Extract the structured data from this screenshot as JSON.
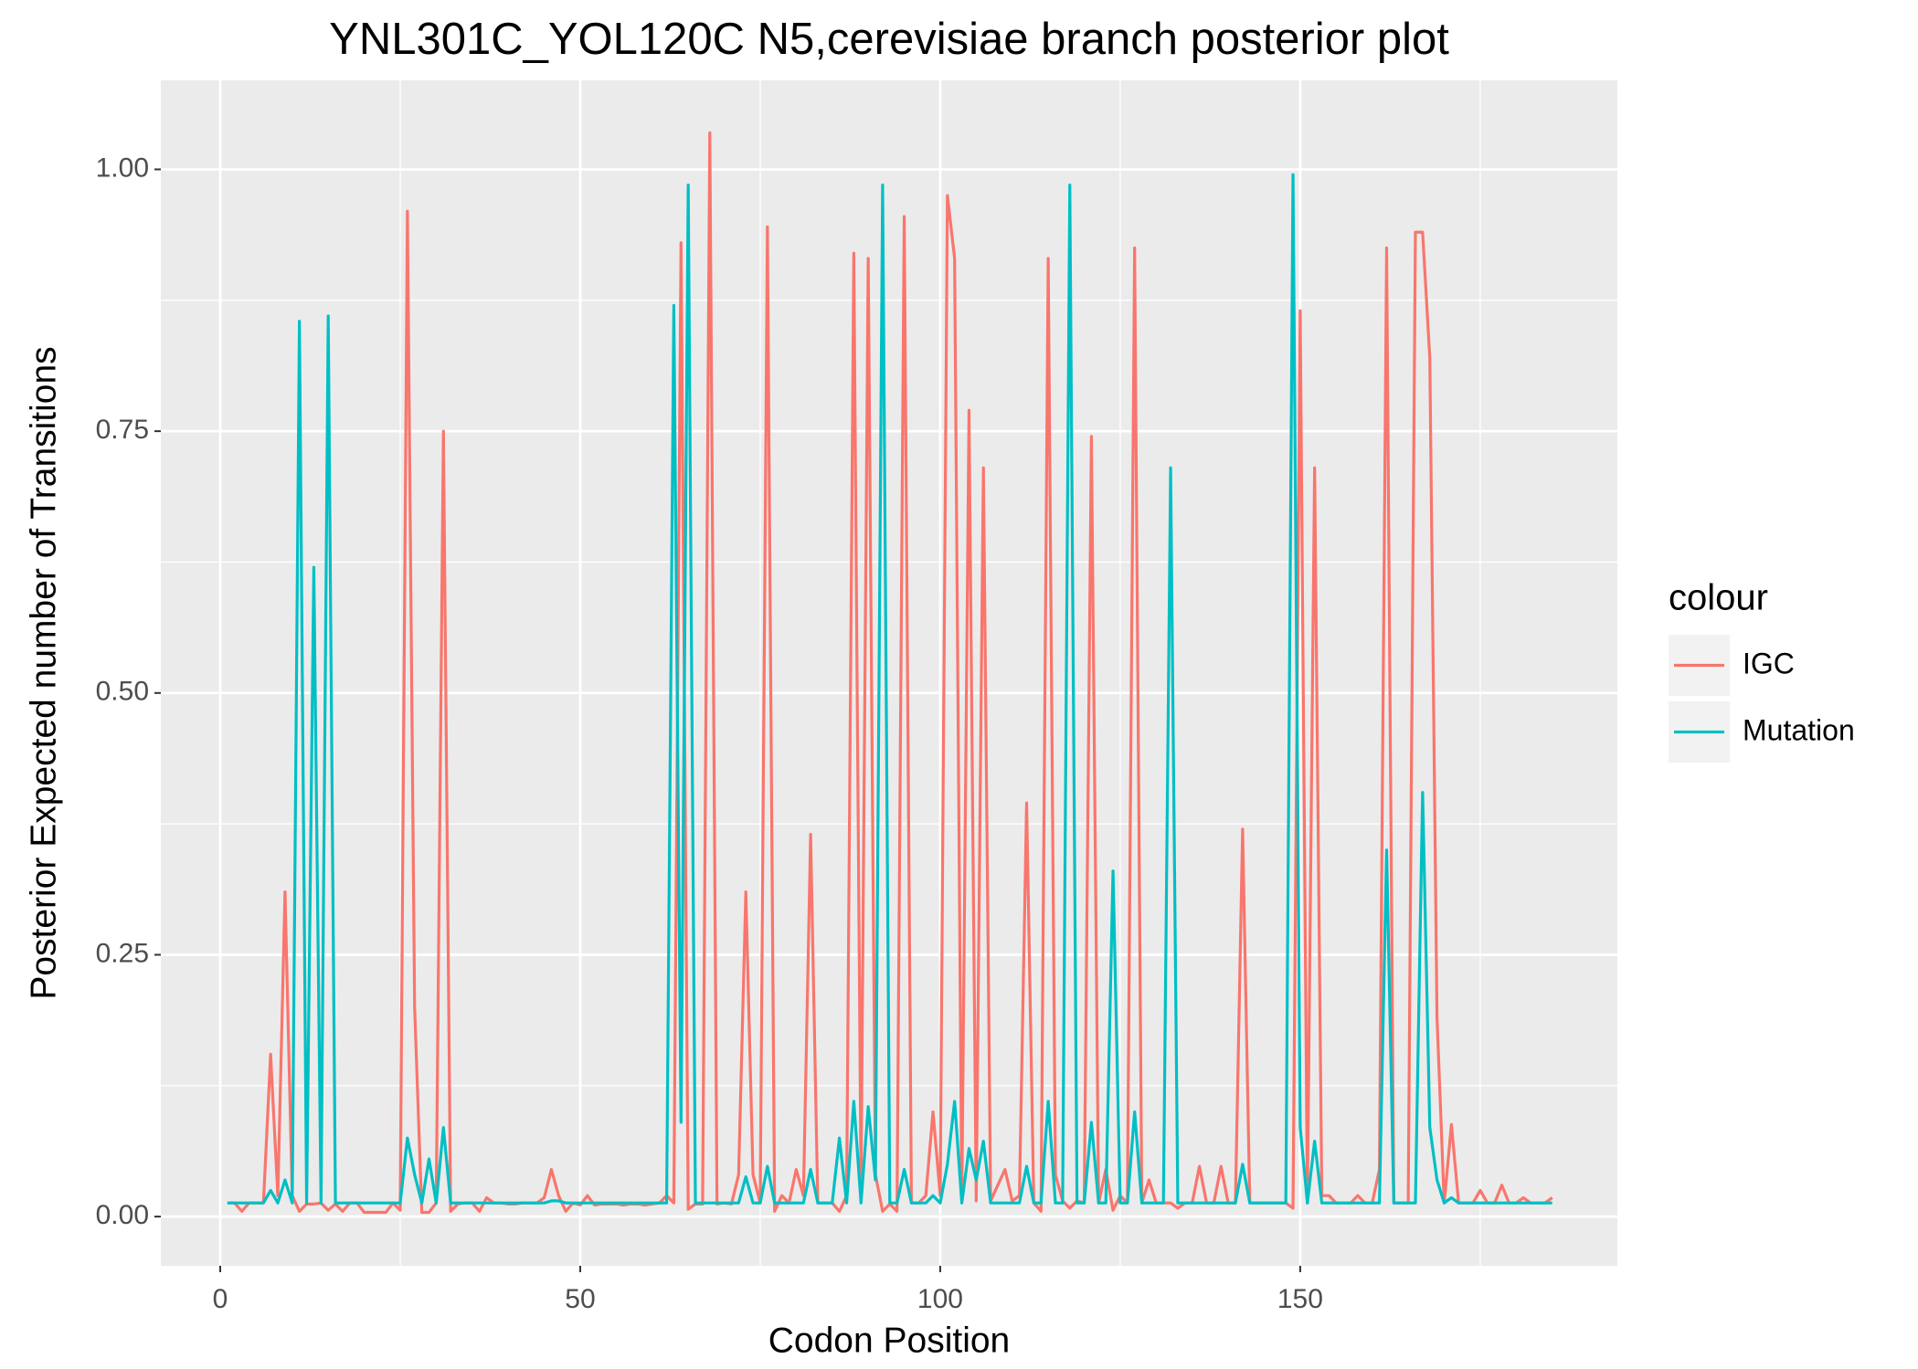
{
  "chart_data": {
    "type": "line",
    "title": "YNL301C_YOL120C N5,cerevisiae branch posterior plot",
    "x_label": "Codon Position",
    "y_label": "Posterior Expected number of Transitions",
    "xlim": [
      -8.25,
      194.05
    ],
    "ylim": [
      -0.047,
      1.085
    ],
    "xticks": [
      0,
      50,
      100,
      150
    ],
    "yticks": [
      {
        "value": 0,
        "label": "0.00"
      },
      {
        "value": 0.25,
        "label": "0.25"
      },
      {
        "value": 0.5,
        "label": "0.50"
      },
      {
        "value": 0.75,
        "label": "0.75"
      },
      {
        "value": 1,
        "label": "1.00"
      }
    ],
    "grid": true,
    "legend_title": "colour",
    "legend_position": "right",
    "x": [
      1,
      2,
      3,
      4,
      5,
      6,
      7,
      8,
      9,
      10,
      11,
      12,
      13,
      14,
      15,
      16,
      17,
      18,
      19,
      20,
      21,
      22,
      23,
      24,
      25,
      26,
      27,
      28,
      29,
      30,
      31,
      32,
      33,
      34,
      35,
      36,
      37,
      38,
      39,
      40,
      41,
      42,
      43,
      44,
      45,
      46,
      47,
      48,
      49,
      50,
      51,
      52,
      53,
      54,
      55,
      56,
      57,
      58,
      59,
      60,
      61,
      62,
      63,
      64,
      65,
      66,
      67,
      68,
      69,
      70,
      71,
      72,
      73,
      74,
      75,
      76,
      77,
      78,
      79,
      80,
      81,
      82,
      83,
      84,
      85,
      86,
      87,
      88,
      89,
      90,
      91,
      92,
      93,
      94,
      95,
      96,
      97,
      98,
      99,
      100,
      101,
      102,
      103,
      104,
      105,
      106,
      107,
      108,
      109,
      110,
      111,
      112,
      113,
      114,
      115,
      116,
      117,
      118,
      119,
      120,
      121,
      122,
      123,
      124,
      125,
      126,
      127,
      128,
      129,
      130,
      131,
      132,
      133,
      134,
      135,
      136,
      137,
      138,
      139,
      140,
      141,
      142,
      143,
      144,
      145,
      146,
      147,
      148,
      149,
      150,
      151,
      152,
      153,
      154,
      155,
      156,
      157,
      158,
      159,
      160,
      161,
      162,
      163,
      164,
      165,
      166,
      167,
      168,
      169,
      170,
      171,
      172,
      173,
      174,
      175,
      176,
      177,
      178,
      179,
      180,
      181,
      182,
      183,
      184,
      185
    ],
    "series": [
      {
        "name": "IGC",
        "color": "#F8766D",
        "values": [
          0.013,
          0.013,
          0.005,
          0.013,
          0.013,
          0.013,
          0.155,
          0.02,
          0.31,
          0.02,
          0.005,
          0.012,
          0.012,
          0.013,
          0.006,
          0.012,
          0.005,
          0.013,
          0.013,
          0.004,
          0.004,
          0.004,
          0.004,
          0.013,
          0.006,
          0.96,
          0.2,
          0.004,
          0.004,
          0.013,
          0.75,
          0.005,
          0.012,
          0.013,
          0.013,
          0.005,
          0.018,
          0.013,
          0.013,
          0.012,
          0.012,
          0.013,
          0.013,
          0.013,
          0.018,
          0.045,
          0.02,
          0.005,
          0.013,
          0.011,
          0.02,
          0.011,
          0.012,
          0.012,
          0.012,
          0.011,
          0.012,
          0.012,
          0.011,
          0.012,
          0.013,
          0.02,
          0.013,
          0.93,
          0.007,
          0.012,
          0.012,
          1.035,
          0.012,
          0.013,
          0.012,
          0.04,
          0.31,
          0.04,
          0.013,
          0.945,
          0.005,
          0.02,
          0.013,
          0.045,
          0.02,
          0.365,
          0.013,
          0.013,
          0.013,
          0.005,
          0.02,
          0.92,
          0.03,
          0.915,
          0.04,
          0.005,
          0.012,
          0.005,
          0.955,
          0.013,
          0.013,
          0.02,
          0.1,
          0.02,
          0.975,
          0.915,
          0.015,
          0.77,
          0.015,
          0.715,
          0.015,
          0.03,
          0.045,
          0.015,
          0.02,
          0.395,
          0.013,
          0.005,
          0.915,
          0.04,
          0.015,
          0.008,
          0.015,
          0.013,
          0.745,
          0.013,
          0.045,
          0.006,
          0.02,
          0.013,
          0.925,
          0.013,
          0.035,
          0.013,
          0.013,
          0.013,
          0.008,
          0.013,
          0.013,
          0.048,
          0.013,
          0.013,
          0.048,
          0.013,
          0.013,
          0.37,
          0.013,
          0.013,
          0.013,
          0.013,
          0.013,
          0.013,
          0.008,
          0.865,
          0.013,
          0.715,
          0.02,
          0.02,
          0.013,
          0.013,
          0.013,
          0.02,
          0.013,
          0.013,
          0.045,
          0.925,
          0.013,
          0.013,
          0.013,
          0.94,
          0.94,
          0.82,
          0.19,
          0.013,
          0.088,
          0.013,
          0.013,
          0.013,
          0.025,
          0.013,
          0.013,
          0.03,
          0.013,
          0.013,
          0.018,
          0.013,
          0.013,
          0.013,
          0.018
        ]
      },
      {
        "name": "Mutation",
        "color": "#00BFC4",
        "values": [
          0.013,
          0.013,
          0.013,
          0.013,
          0.013,
          0.013,
          0.025,
          0.013,
          0.035,
          0.013,
          0.855,
          0.013,
          0.62,
          0.013,
          0.86,
          0.013,
          0.013,
          0.013,
          0.013,
          0.013,
          0.013,
          0.013,
          0.013,
          0.013,
          0.013,
          0.075,
          0.04,
          0.013,
          0.055,
          0.013,
          0.085,
          0.013,
          0.013,
          0.013,
          0.013,
          0.013,
          0.013,
          0.013,
          0.013,
          0.013,
          0.013,
          0.013,
          0.013,
          0.013,
          0.013,
          0.015,
          0.015,
          0.013,
          0.013,
          0.013,
          0.013,
          0.013,
          0.013,
          0.013,
          0.013,
          0.013,
          0.013,
          0.013,
          0.013,
          0.013,
          0.013,
          0.013,
          0.87,
          0.09,
          0.985,
          0.013,
          0.013,
          0.013,
          0.013,
          0.013,
          0.013,
          0.013,
          0.038,
          0.013,
          0.013,
          0.048,
          0.013,
          0.013,
          0.013,
          0.013,
          0.013,
          0.045,
          0.013,
          0.013,
          0.013,
          0.075,
          0.013,
          0.11,
          0.013,
          0.105,
          0.035,
          0.985,
          0.013,
          0.013,
          0.045,
          0.013,
          0.013,
          0.013,
          0.02,
          0.013,
          0.05,
          0.11,
          0.013,
          0.065,
          0.035,
          0.072,
          0.013,
          0.013,
          0.013,
          0.013,
          0.013,
          0.048,
          0.013,
          0.013,
          0.11,
          0.013,
          0.013,
          0.985,
          0.013,
          0.013,
          0.09,
          0.013,
          0.013,
          0.33,
          0.013,
          0.013,
          0.1,
          0.013,
          0.013,
          0.013,
          0.013,
          0.715,
          0.013,
          0.013,
          0.013,
          0.013,
          0.013,
          0.013,
          0.013,
          0.013,
          0.013,
          0.05,
          0.013,
          0.013,
          0.013,
          0.013,
          0.013,
          0.013,
          0.995,
          0.085,
          0.013,
          0.072,
          0.013,
          0.013,
          0.013,
          0.013,
          0.013,
          0.013,
          0.013,
          0.013,
          0.013,
          0.35,
          0.013,
          0.013,
          0.013,
          0.013,
          0.405,
          0.085,
          0.035,
          0.013,
          0.018,
          0.013,
          0.013,
          0.013,
          0.013,
          0.013,
          0.013,
          0.013,
          0.013,
          0.013,
          0.013,
          0.013,
          0.013,
          0.013,
          0.013
        ]
      }
    ]
  }
}
